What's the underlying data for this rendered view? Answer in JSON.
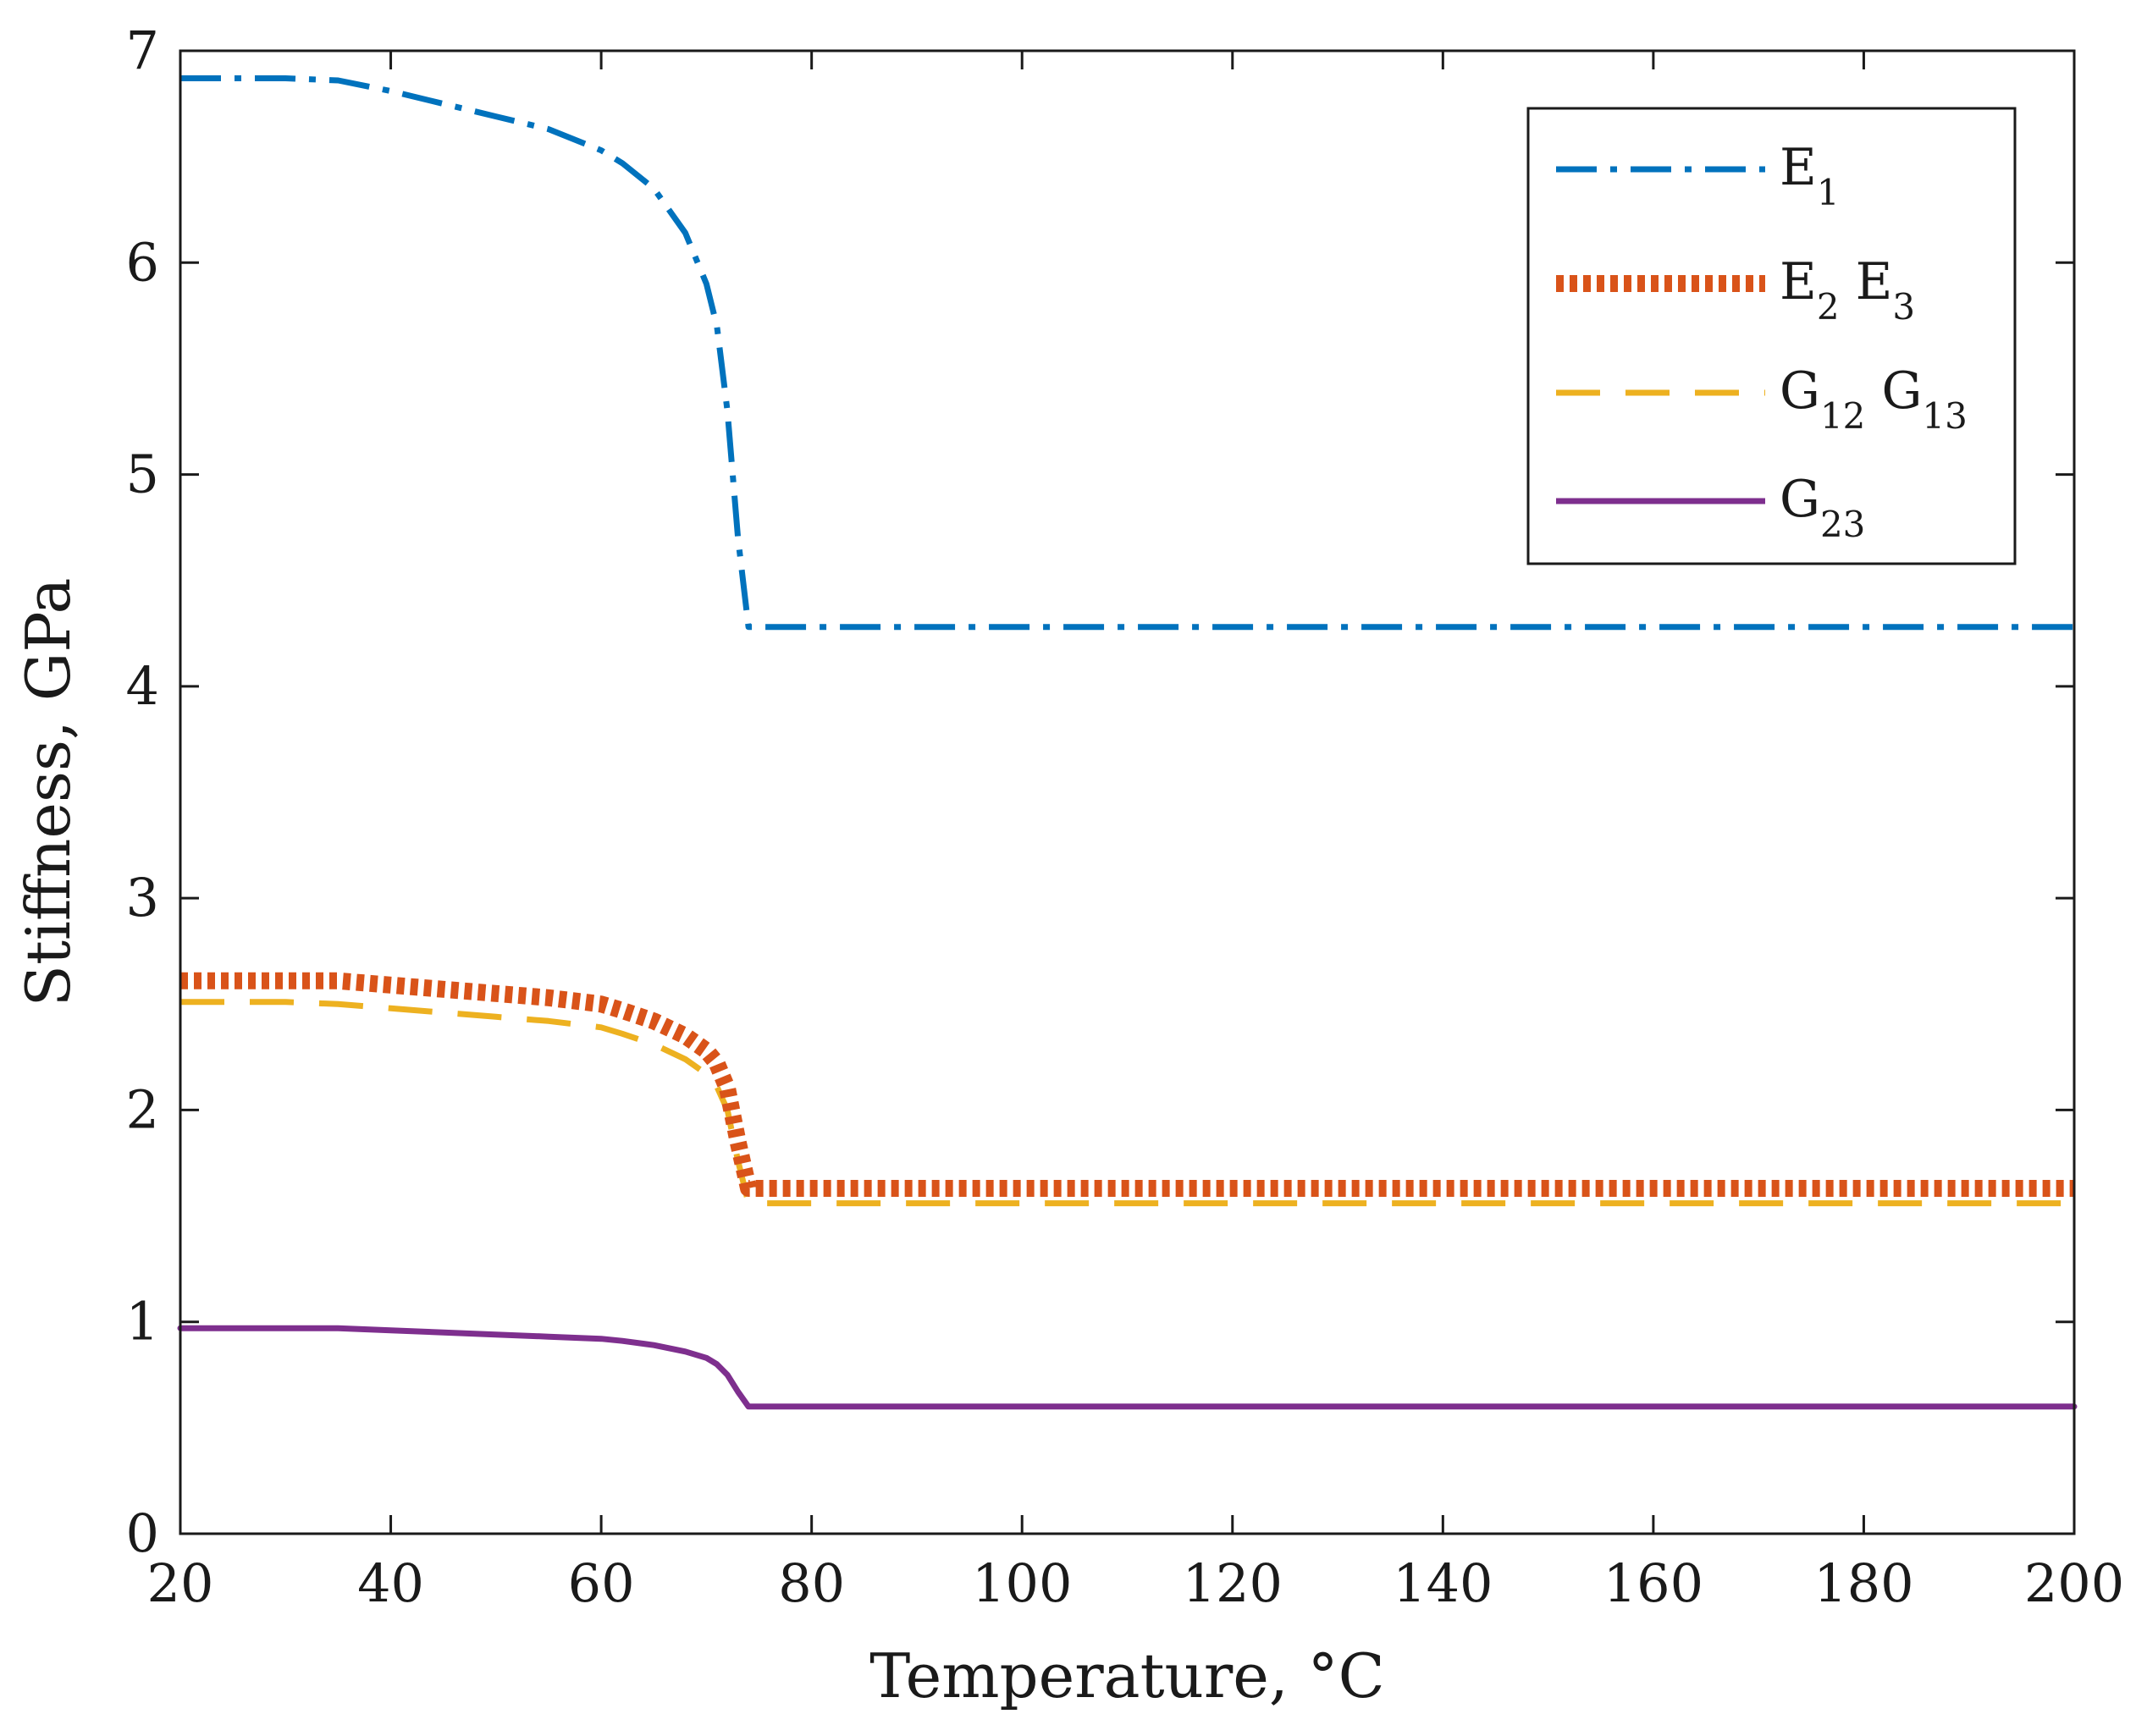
{
  "chart_data": {
    "type": "line",
    "title": "",
    "xlabel": "Temperature, °C",
    "ylabel": "Stiffness, GPa",
    "xlim": [
      20,
      200
    ],
    "ylim": [
      0,
      7
    ],
    "x_ticks": [
      "20",
      "40",
      "60",
      "80",
      "100",
      "120",
      "140",
      "160",
      "180",
      "200"
    ],
    "y_ticks": [
      "0",
      "1",
      "2",
      "3",
      "4",
      "5",
      "6",
      "7"
    ],
    "grid": false,
    "legend_position": "top-right",
    "series": [
      {
        "name": "E1",
        "legend_main": "E",
        "legend_sub": "1",
        "color": "#0072BD",
        "style": "dashdot",
        "x": [
          20,
          30,
          35,
          40,
          45,
          50,
          55,
          60,
          62,
          65,
          68,
          70,
          71,
          72,
          73,
          74,
          75,
          80,
          100,
          120,
          140,
          160,
          180,
          200
        ],
        "y": [
          6.87,
          6.87,
          6.86,
          6.81,
          6.75,
          6.69,
          6.63,
          6.53,
          6.47,
          6.35,
          6.14,
          5.9,
          5.7,
          5.3,
          4.7,
          4.28,
          4.28,
          4.28,
          4.28,
          4.28,
          4.28,
          4.28,
          4.28,
          4.28
        ]
      },
      {
        "name": "E2 E3",
        "legend_main": "E",
        "legend_sub": "2",
        "legend_main2": "E",
        "legend_sub2": "3",
        "color": "#D95319",
        "style": "dotted",
        "x": [
          20,
          30,
          35,
          40,
          45,
          50,
          55,
          60,
          62,
          65,
          68,
          70,
          71,
          72,
          73,
          74,
          75,
          80,
          100,
          120,
          140,
          160,
          180,
          200
        ],
        "y": [
          2.61,
          2.61,
          2.61,
          2.59,
          2.57,
          2.55,
          2.53,
          2.5,
          2.47,
          2.42,
          2.35,
          2.28,
          2.22,
          2.1,
          1.85,
          1.63,
          1.63,
          1.63,
          1.63,
          1.63,
          1.63,
          1.63,
          1.63,
          1.63
        ]
      },
      {
        "name": "G12 G13",
        "legend_main": "G",
        "legend_sub": "12",
        "legend_main2": "G",
        "legend_sub2": "13",
        "color": "#EDB120",
        "style": "dashed",
        "x": [
          20,
          30,
          35,
          40,
          45,
          50,
          55,
          60,
          62,
          65,
          68,
          70,
          71,
          72,
          73,
          74,
          75,
          80,
          100,
          120,
          140,
          160,
          180,
          200
        ],
        "y": [
          2.51,
          2.51,
          2.5,
          2.48,
          2.46,
          2.44,
          2.42,
          2.39,
          2.36,
          2.31,
          2.24,
          2.17,
          2.11,
          2.0,
          1.76,
          1.56,
          1.56,
          1.56,
          1.56,
          1.56,
          1.56,
          1.56,
          1.56,
          1.56
        ]
      },
      {
        "name": "G23",
        "legend_main": "G",
        "legend_sub": "23",
        "color": "#7E2F8E",
        "style": "solid",
        "x": [
          20,
          30,
          35,
          40,
          45,
          50,
          55,
          60,
          62,
          65,
          68,
          70,
          71,
          72,
          73,
          74,
          75,
          80,
          100,
          120,
          140,
          160,
          180,
          200
        ],
        "y": [
          0.97,
          0.97,
          0.97,
          0.96,
          0.95,
          0.94,
          0.93,
          0.92,
          0.91,
          0.89,
          0.86,
          0.83,
          0.8,
          0.75,
          0.67,
          0.6,
          0.6,
          0.6,
          0.6,
          0.6,
          0.6,
          0.6,
          0.6,
          0.6
        ]
      }
    ]
  }
}
